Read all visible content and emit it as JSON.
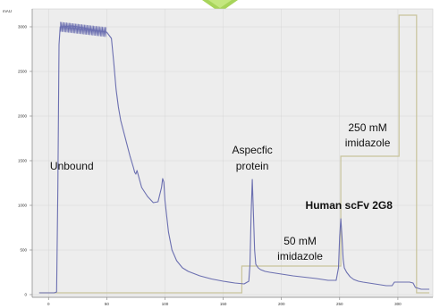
{
  "chart_data": {
    "type": "line",
    "title": "",
    "ylabel": "mAU",
    "xlabel": "",
    "grid": true,
    "xlim": [
      -14,
      330
    ],
    "ylim": [
      -30,
      3200
    ],
    "x_ticks": [
      0,
      50,
      100,
      150,
      200,
      250,
      300
    ],
    "y_ticks": [
      0,
      500,
      1000,
      1500,
      2000,
      2500,
      3000
    ],
    "series": [
      {
        "role": "absorbance",
        "color": "#6b6fb0",
        "x": [
          -8,
          3,
          5,
          7,
          8,
          9,
          10,
          20,
          30,
          40,
          50,
          54,
          56,
          58,
          60,
          62,
          65,
          70,
          73,
          74,
          75,
          76,
          80,
          85,
          90,
          94,
          97,
          98,
          99,
          100,
          103,
          106,
          110,
          115,
          120,
          130,
          140,
          150,
          160,
          168,
          172,
          173,
          174,
          175,
          176,
          177,
          178,
          180,
          182,
          186,
          190,
          200,
          210,
          220,
          230,
          240,
          247,
          249,
          250,
          251,
          252,
          253,
          254,
          256,
          259,
          262,
          266,
          270,
          280,
          290,
          295,
          297,
          300,
          305,
          310,
          313,
          315,
          320,
          327
        ],
        "y": [
          20,
          20,
          20,
          30,
          1200,
          2800,
          3000,
          3010,
          2990,
          2960,
          2940,
          2870,
          2600,
          2300,
          2100,
          1950,
          1800,
          1550,
          1420,
          1370,
          1350,
          1390,
          1200,
          1100,
          1030,
          1040,
          1200,
          1300,
          1260,
          1050,
          700,
          500,
          380,
          300,
          260,
          210,
          175,
          150,
          130,
          120,
          150,
          330,
          900,
          1290,
          900,
          500,
          340,
          300,
          280,
          260,
          250,
          230,
          210,
          195,
          180,
          160,
          160,
          300,
          650,
          850,
          650,
          400,
          300,
          250,
          200,
          170,
          150,
          140,
          120,
          100,
          100,
          140,
          140,
          140,
          140,
          130,
          80,
          60,
          60
        ]
      },
      {
        "role": "imidazole_step",
        "color": "#c8c49c",
        "x": [
          -8,
          166,
          166,
          251,
          251,
          301,
          301,
          316,
          316,
          327
        ],
        "y": [
          20,
          20,
          320,
          320,
          1550,
          1550,
          3130,
          3130,
          20,
          20
        ]
      }
    ],
    "annotations": [
      {
        "text": "Unbound",
        "x": 20,
        "y": 1400,
        "bold": false
      },
      {
        "text": "Aspecfic",
        "x": 175,
        "y": 1580,
        "bold": false
      },
      {
        "text": "protein",
        "x": 175,
        "y": 1400,
        "bold": false
      },
      {
        "text": "50 mM",
        "x": 216,
        "y": 560,
        "bold": false
      },
      {
        "text": "imidazole",
        "x": 216,
        "y": 390,
        "bold": false
      },
      {
        "text": "250 mM",
        "x": 274,
        "y": 1830,
        "bold": false
      },
      {
        "text": "imidazole",
        "x": 274,
        "y": 1660,
        "bold": false
      },
      {
        "text": "Human scFv 2G8",
        "x": 258,
        "y": 960,
        "bold": true
      }
    ]
  }
}
